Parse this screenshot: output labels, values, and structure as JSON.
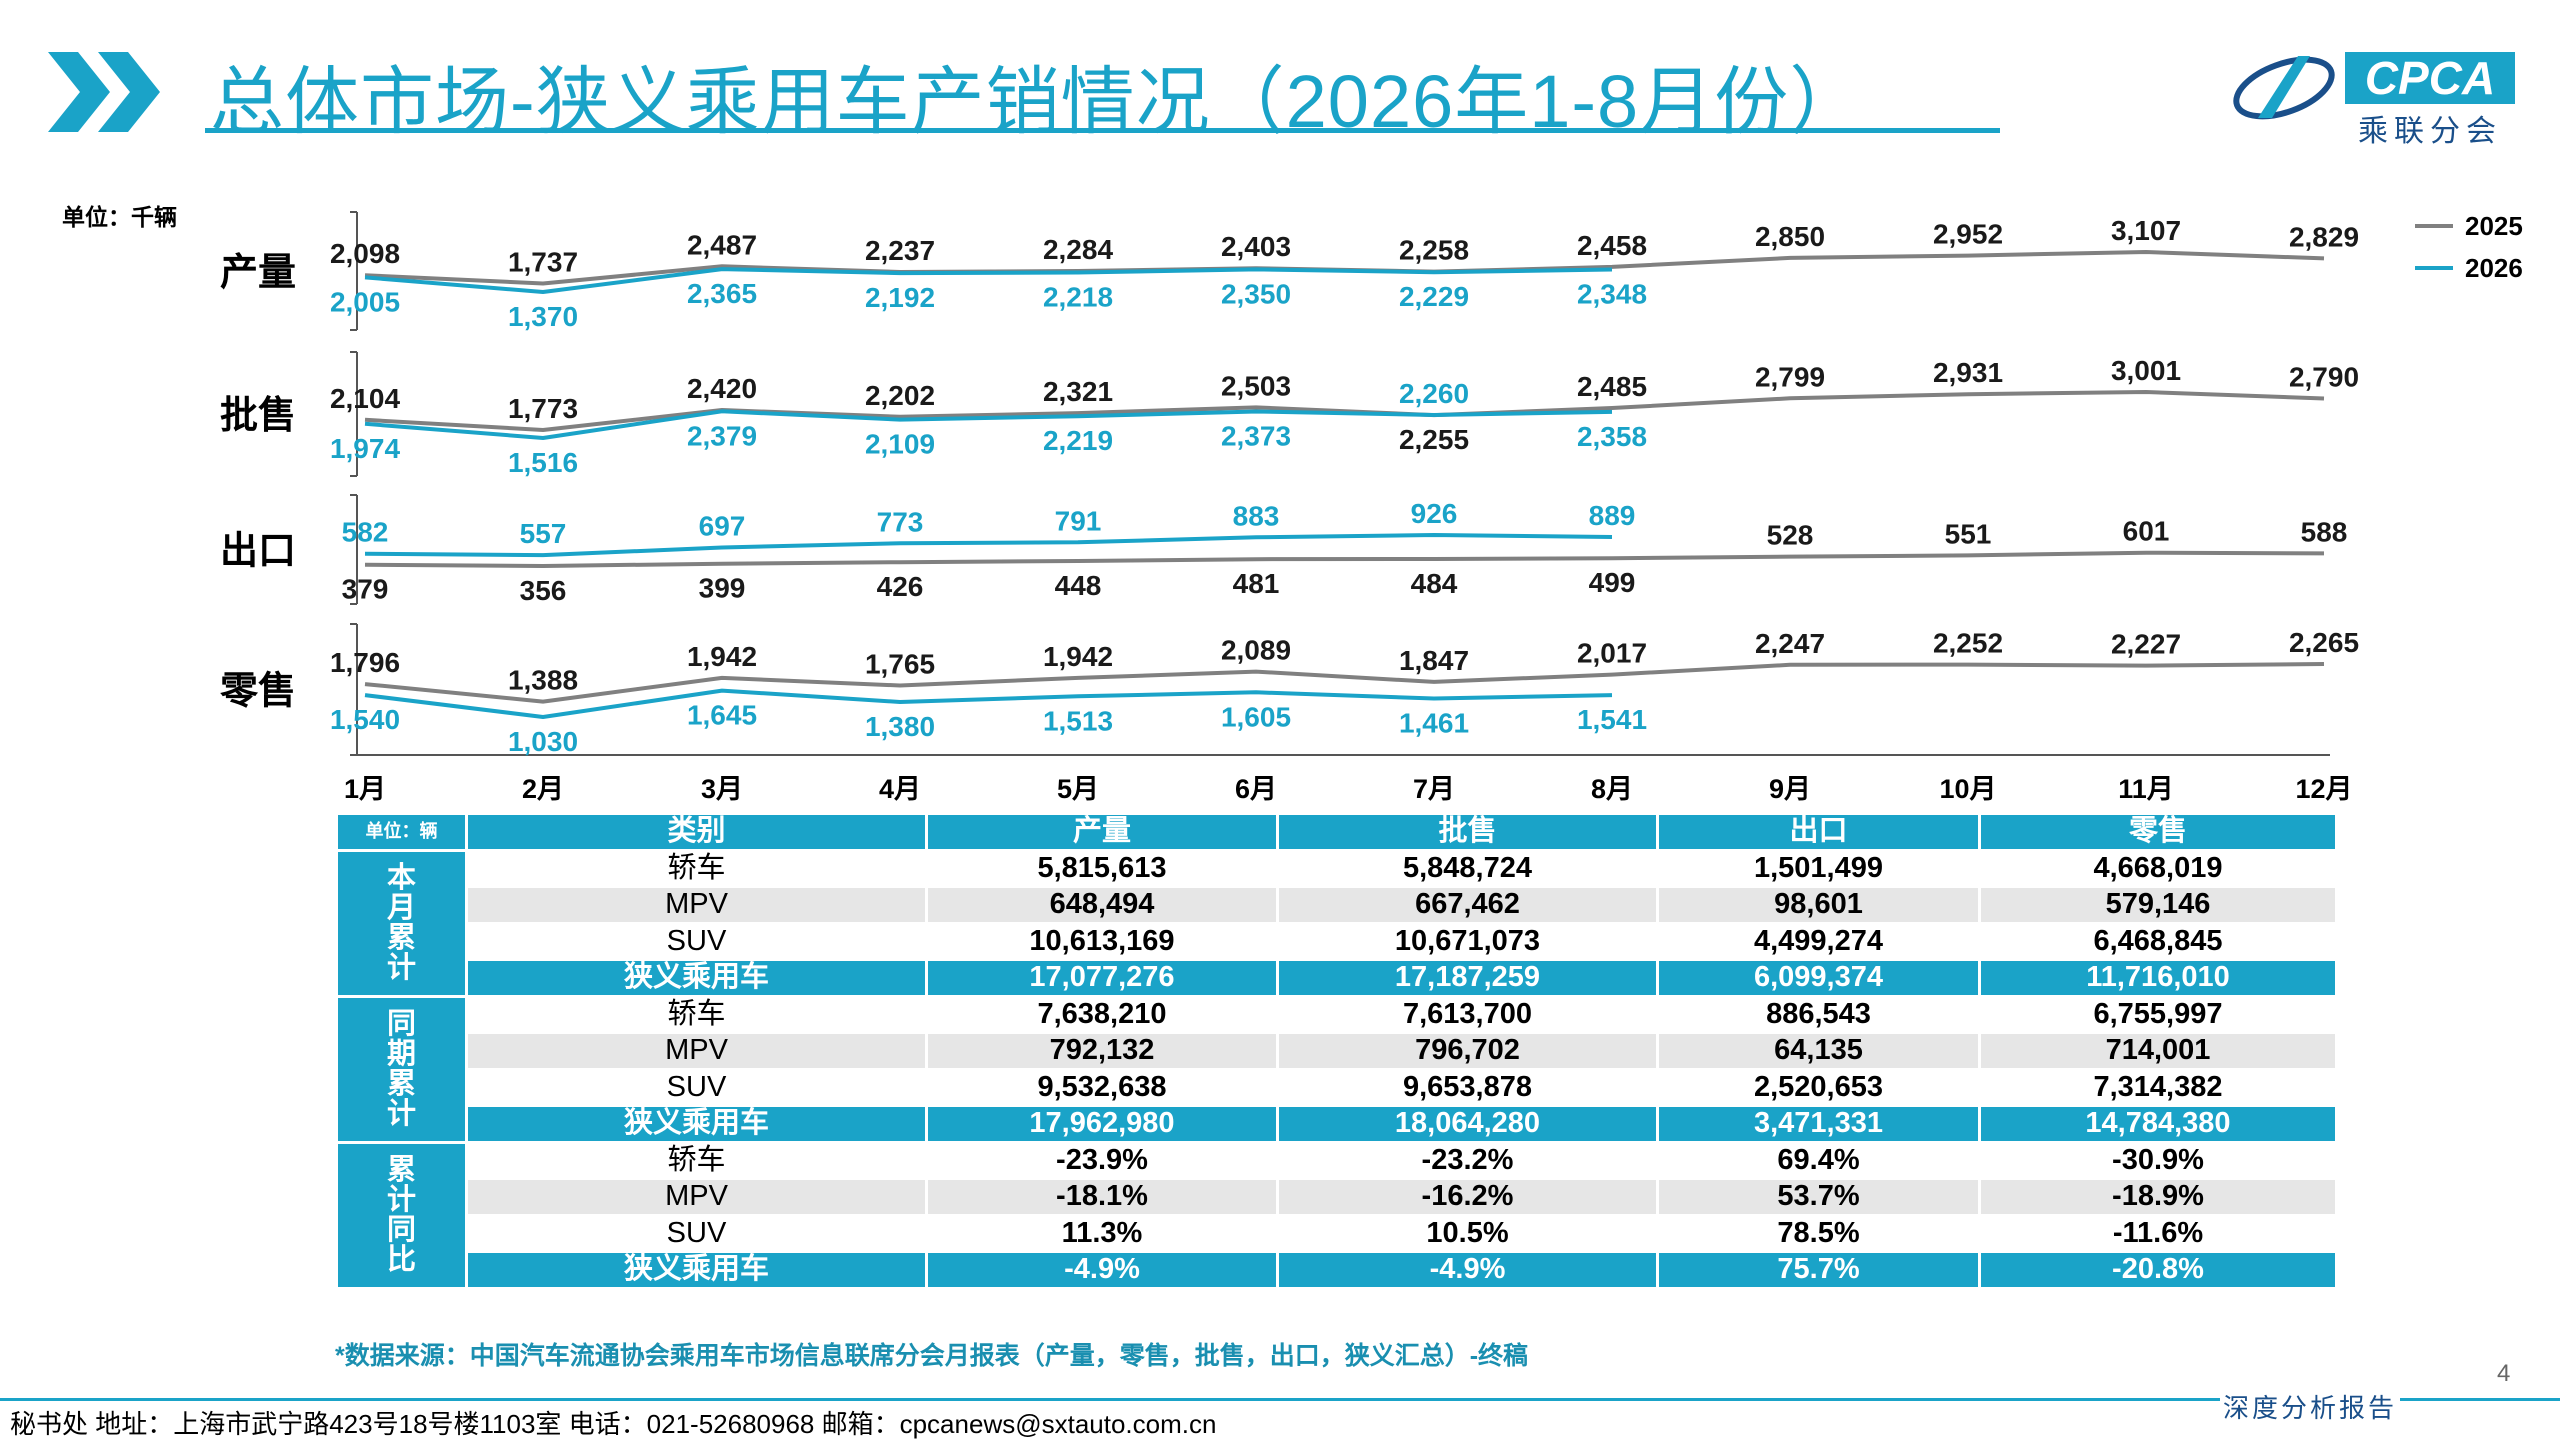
{
  "title": "总体市场-狭义乘用车产销情况（2026年1-8月份）",
  "logo": {
    "text": "CPCA",
    "sub": "乘联分会"
  },
  "chart_data": {
    "type": "line",
    "unit_label": "单位：千辆",
    "categories": [
      "1月",
      "2月",
      "3月",
      "4月",
      "5月",
      "6月",
      "7月",
      "8月",
      "9月",
      "10月",
      "11月",
      "12月"
    ],
    "legend": [
      {
        "name": "2025",
        "color": "#808080"
      },
      {
        "name": "2026",
        "color": "#1aa3c8"
      }
    ],
    "panels": [
      {
        "label": "产量",
        "y2025": [
          2098,
          1737,
          2487,
          2237,
          2284,
          2403,
          2258,
          2458,
          2850,
          2952,
          3107,
          2829
        ],
        "y2026": [
          2005,
          1370,
          2365,
          2192,
          2218,
          2350,
          2229,
          2348
        ]
      },
      {
        "label": "批售",
        "y2025": [
          2104,
          1773,
          2420,
          2202,
          2321,
          2503,
          2255,
          2485,
          2799,
          2931,
          3001,
          2790
        ],
        "y2026": [
          1974,
          1516,
          2379,
          2109,
          2219,
          2373,
          2260,
          2358
        ]
      },
      {
        "label": "出口",
        "y2025": [
          379,
          356,
          399,
          426,
          448,
          481,
          484,
          499,
          528,
          551,
          601,
          588
        ],
        "y2026": [
          582,
          557,
          697,
          773,
          791,
          883,
          926,
          889
        ]
      },
      {
        "label": "零售",
        "y2025": [
          1796,
          1388,
          1942,
          1765,
          1942,
          2089,
          1847,
          2017,
          2247,
          2252,
          2227,
          2265
        ],
        "y2026": [
          1540,
          1030,
          1645,
          1380,
          1513,
          1605,
          1461,
          1541
        ]
      }
    ]
  },
  "table": {
    "unit_label": "单位：辆",
    "headers": [
      "类别",
      "产量",
      "批售",
      "出口",
      "零售"
    ],
    "groups": [
      {
        "label": [
          "本",
          "月",
          "累",
          "计"
        ],
        "rows": [
          [
            "轿车",
            "5,815,613",
            "5,848,724",
            "1,501,499",
            "4,668,019"
          ],
          [
            "MPV",
            "648,494",
            "667,462",
            "98,601",
            "579,146"
          ],
          [
            "SUV",
            "10,613,169",
            "10,671,073",
            "4,499,274",
            "6,468,845"
          ],
          [
            "狭义乘用车",
            "17,077,276",
            "17,187,259",
            "6,099,374",
            "11,716,010"
          ]
        ]
      },
      {
        "label": [
          "同",
          "期",
          "累",
          "计"
        ],
        "rows": [
          [
            "轿车",
            "7,638,210",
            "7,613,700",
            "886,543",
            "6,755,997"
          ],
          [
            "MPV",
            "792,132",
            "796,702",
            "64,135",
            "714,001"
          ],
          [
            "SUV",
            "9,532,638",
            "9,653,878",
            "2,520,653",
            "7,314,382"
          ],
          [
            "狭义乘用车",
            "17,962,980",
            "18,064,280",
            "3,471,331",
            "14,784,380"
          ]
        ]
      },
      {
        "label": [
          "累",
          "计",
          "同",
          "比"
        ],
        "rows": [
          [
            "轿车",
            "-23.9%",
            "-23.2%",
            "69.4%",
            "-30.9%"
          ],
          [
            "MPV",
            "-18.1%",
            "-16.2%",
            "53.7%",
            "-18.9%"
          ],
          [
            "SUV",
            "11.3%",
            "10.5%",
            "78.5%",
            "-11.6%"
          ],
          [
            "狭义乘用车",
            "-4.9%",
            "-4.9%",
            "75.7%",
            "-20.8%"
          ]
        ]
      }
    ]
  },
  "source": "*数据来源：中国汽车流通协会乘用车市场信息联席分会月报表（产量，零售，批售，出口，狭义汇总）-终稿",
  "page_number": "4",
  "footer": "秘书处   地址：上海市武宁路423号18号楼1103室  电话：021-52680968   邮箱：cpcanews@sxtauto.com.cn",
  "report_tag": "深度分析报告"
}
